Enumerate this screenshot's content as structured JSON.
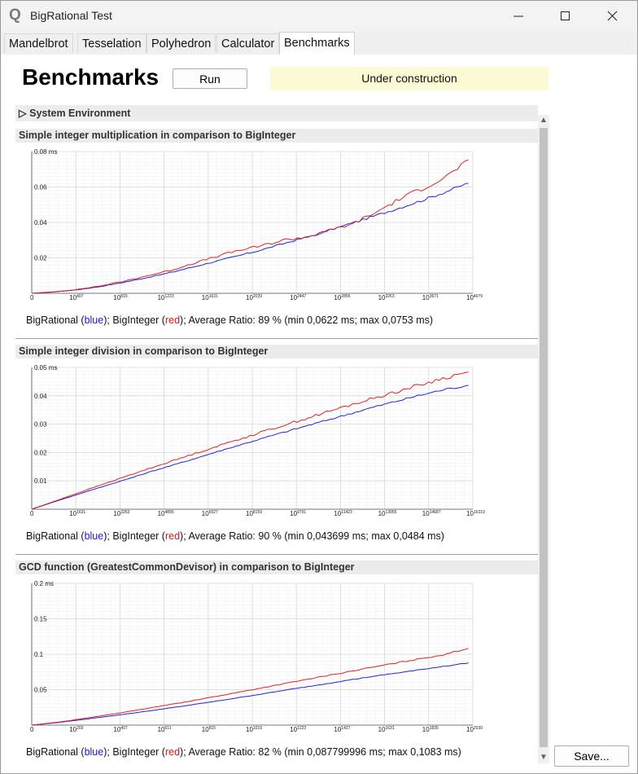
{
  "window": {
    "title": "BigRational Test",
    "icon": "q-logo-icon"
  },
  "tabs": [
    {
      "label": "Mandelbrot"
    },
    {
      "label": "Tesselation"
    },
    {
      "label": "Polyhedron"
    },
    {
      "label": "Calculator"
    },
    {
      "label": "Benchmarks",
      "active": true
    }
  ],
  "header": {
    "title": "Benchmarks",
    "run_label": "Run",
    "status": "Under construction"
  },
  "system_env": {
    "label": "System Environment",
    "glyph": "▷"
  },
  "save_label": "Save...",
  "colors": {
    "bigrational": "#2222dd",
    "biginteger": "#e02020",
    "status_bg": "#fdfbd5"
  },
  "sections": [
    {
      "title": "Simple integer multiplication in comparison to BigInteger",
      "caption": {
        "pre": "BigRational (",
        "blue": "blue",
        "mid": "); BigInteger (",
        "red": "red",
        "post": "); Average Ratio: 89 % (min 0,0622 ms; max 0,0753 ms)"
      },
      "chart_data": {
        "type": "line",
        "y_unit": "ms",
        "ylim": [
          0,
          0.08
        ],
        "y_ticks": [
          "0.02",
          "0.04",
          "0.06",
          "0.08 ms"
        ],
        "x_ticks": [
          {
            "base": "0",
            "exp": ""
          },
          {
            "base": "10",
            "exp": "407"
          },
          {
            "base": "10",
            "exp": "815"
          },
          {
            "base": "10",
            "exp": "1223"
          },
          {
            "base": "10",
            "exp": "1631"
          },
          {
            "base": "10",
            "exp": "2039"
          },
          {
            "base": "10",
            "exp": "2447"
          },
          {
            "base": "10",
            "exp": "2855"
          },
          {
            "base": "10",
            "exp": "3263"
          },
          {
            "base": "10",
            "exp": "3671"
          },
          {
            "base": "10",
            "exp": "4079"
          }
        ],
        "series": [
          {
            "color": "#2222dd",
            "values": [
              0,
              0.0008,
              0.002,
              0.0038,
              0.0062,
              0.0088,
              0.0116,
              0.0148,
              0.018,
              0.0212,
              0.0245,
              0.0282,
              0.0318,
              0.0358,
              0.0398,
              0.044,
              0.0482,
              0.0525,
              0.0572,
              0.0622
            ]
          },
          {
            "color": "#e02020",
            "values": [
              0,
              0.0009,
              0.0022,
              0.0042,
              0.0068,
              0.0098,
              0.0128,
              0.0168,
              0.0206,
              0.0242,
              0.0268,
              0.0302,
              0.0318,
              0.0355,
              0.0395,
              0.0458,
              0.0532,
              0.0592,
              0.0655,
              0.0753
            ]
          }
        ],
        "noise": 0.0018
      }
    },
    {
      "title": "Simple integer division in comparison to BigInteger",
      "caption": {
        "pre": "BigRational (",
        "blue": "blue",
        "mid": "); BigInteger (",
        "red": "red",
        "post": "); Average Ratio: 90 % (min 0,043699 ms; max 0,0484 ms)"
      },
      "chart_data": {
        "type": "line",
        "y_unit": "ms",
        "ylim": [
          0,
          0.05
        ],
        "y_ticks": [
          "0.01",
          "0.02",
          "0.03",
          "0.04",
          "0.05 ms"
        ],
        "x_ticks": [
          {
            "base": "0",
            "exp": ""
          },
          {
            "base": "10",
            "exp": "1631"
          },
          {
            "base": "10",
            "exp": "3263"
          },
          {
            "base": "10",
            "exp": "4895"
          },
          {
            "base": "10",
            "exp": "6527"
          },
          {
            "base": "10",
            "exp": "8159"
          },
          {
            "base": "10",
            "exp": "9791"
          },
          {
            "base": "10",
            "exp": "11423"
          },
          {
            "base": "10",
            "exp": "13055"
          },
          {
            "base": "10",
            "exp": "14687"
          },
          {
            "base": "10",
            "exp": "16319"
          }
        ],
        "series": [
          {
            "color": "#2222dd",
            "values": [
              0,
              0.0028,
              0.0055,
              0.0082,
              0.0108,
              0.0135,
              0.016,
              0.0186,
              0.0212,
              0.0237,
              0.0262,
              0.0286,
              0.031,
              0.0334,
              0.0358,
              0.038,
              0.0402,
              0.0422,
              0.0437
            ]
          },
          {
            "color": "#e02020",
            "values": [
              0,
              0.003,
              0.006,
              0.009,
              0.0119,
              0.0148,
              0.0176,
              0.0204,
              0.0232,
              0.0259,
              0.0286,
              0.0312,
              0.0338,
              0.0364,
              0.0389,
              0.0414,
              0.0438,
              0.0462,
              0.0484
            ]
          }
        ],
        "noise": 0.0009
      }
    },
    {
      "title": "GCD function (GreatestCommonDevisor) in comparison to BigInteger",
      "caption": {
        "pre": "BigRational (",
        "blue": "blue",
        "mid": "); BigInteger (",
        "red": "red",
        "post": "); Average Ratio: 82 % (min 0,087799996 ms; max 0,1083 ms)"
      },
      "chart_data": {
        "type": "line",
        "y_unit": "ms",
        "ylim": [
          0,
          0.2
        ],
        "y_ticks": [
          "0.05",
          "0.1",
          "0.15",
          "0.2 ms"
        ],
        "x_ticks": [
          {
            "base": "0",
            "exp": ""
          },
          {
            "base": "10",
            "exp": "203"
          },
          {
            "base": "10",
            "exp": "407"
          },
          {
            "base": "10",
            "exp": "611"
          },
          {
            "base": "10",
            "exp": "815"
          },
          {
            "base": "10",
            "exp": "1019"
          },
          {
            "base": "10",
            "exp": "1223"
          },
          {
            "base": "10",
            "exp": "1427"
          },
          {
            "base": "10",
            "exp": "1631"
          },
          {
            "base": "10",
            "exp": "1835"
          },
          {
            "base": "10",
            "exp": "2039"
          }
        ],
        "series": [
          {
            "color": "#2222dd",
            "values": [
              0,
              0.0035,
              0.008,
              0.0125,
              0.0172,
              0.0222,
              0.0274,
              0.0328,
              0.0384,
              0.0442,
              0.05,
              0.0558,
              0.0616,
              0.0672,
              0.0724,
              0.0775,
              0.0828,
              0.0878
            ]
          },
          {
            "color": "#e02020",
            "values": [
              0,
              0.004,
              0.0092,
              0.0147,
              0.0205,
              0.0266,
              0.0329,
              0.0394,
              0.046,
              0.0528,
              0.0596,
              0.0664,
              0.0732,
              0.0798,
              0.0864,
              0.0928,
              0.0992,
              0.1083
            ]
          }
        ],
        "noise": 0.0012
      }
    }
  ]
}
